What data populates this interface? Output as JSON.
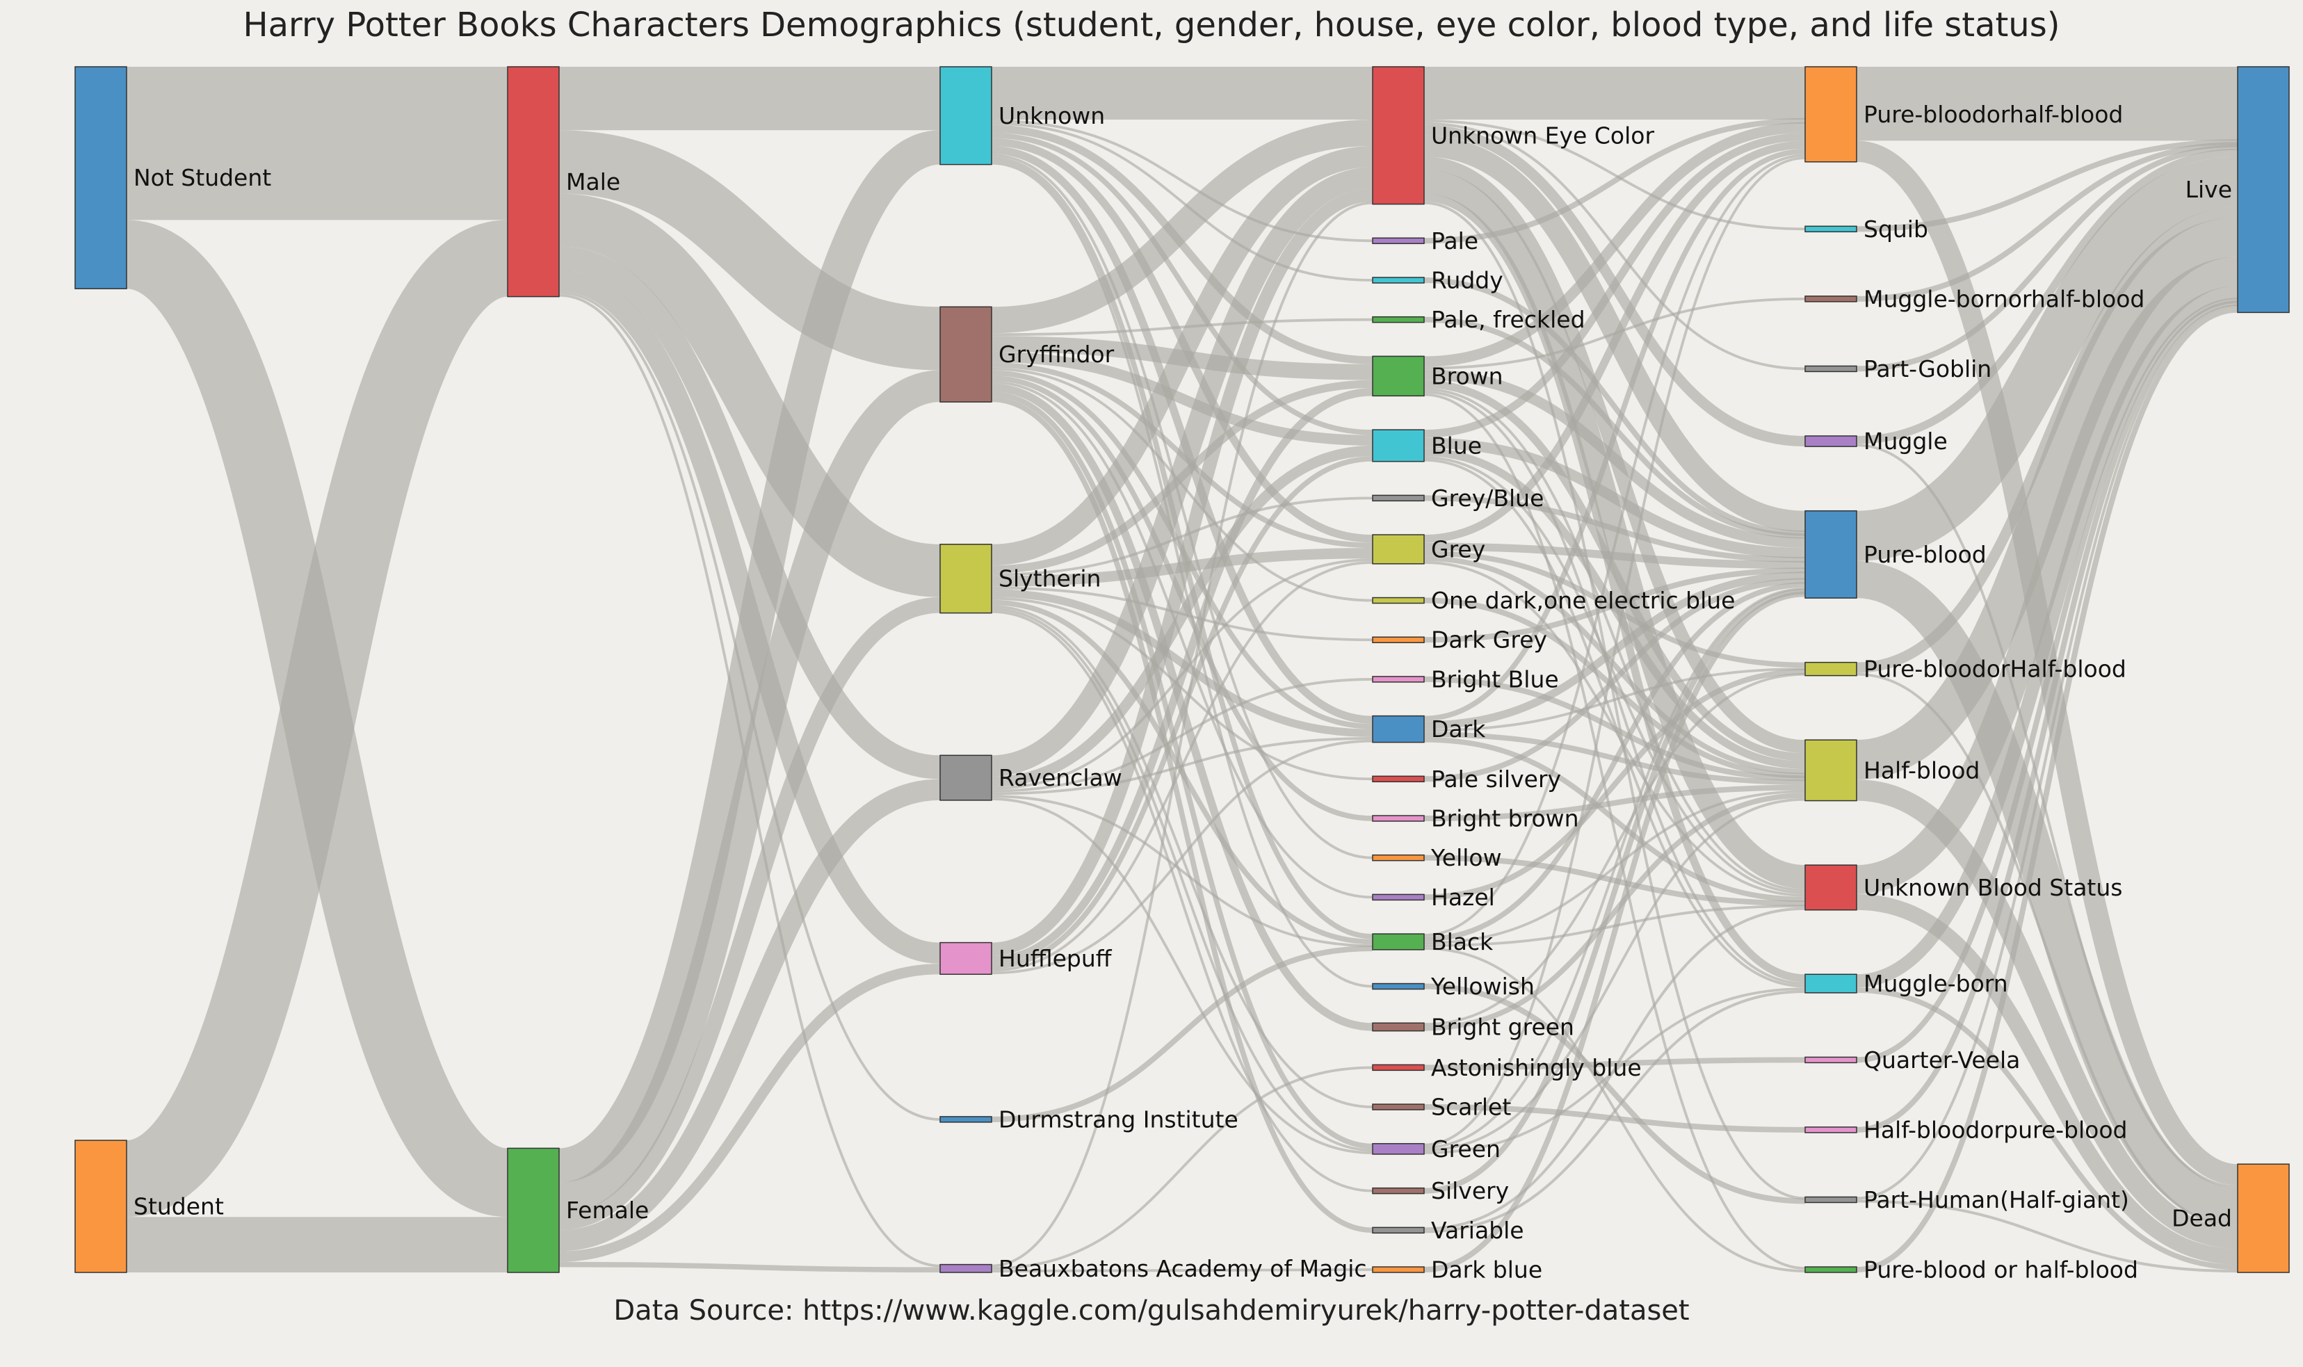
{
  "title": "Harry Potter Books Characters Demographics (student, gender, house, eye color, blood type, and life status)",
  "source": "Data Source: https://www.kaggle.com/gulsahdemiryurek/harry-potter-dataset",
  "chart_data": {
    "type": "sankey",
    "title": "Harry Potter Books Characters Demographics (student, gender, house, eye color, blood type, and life status)",
    "stages": [
      [
        {
          "id": "not_student",
          "label": "Not Student",
          "value": 84,
          "color": "#4a90c4"
        },
        {
          "id": "student",
          "label": "Student",
          "value": 50,
          "color": "#fa9640"
        }
      ],
      [
        {
          "id": "male",
          "label": "Male",
          "value": 87,
          "color": "#dc4f50"
        },
        {
          "id": "female",
          "label": "Female",
          "value": 47,
          "color": "#54b050"
        }
      ],
      [
        {
          "id": "h_unknown",
          "label": "Unknown",
          "value": 37,
          "color": "#42c5d3"
        },
        {
          "id": "gryffindor",
          "label": "Gryffindor",
          "value": 36,
          "color": "#a0716a"
        },
        {
          "id": "slytherin",
          "label": "Slytherin",
          "value": 26,
          "color": "#c6c84c"
        },
        {
          "id": "ravenclaw",
          "label": "Ravenclaw",
          "value": 17,
          "color": "#949494"
        },
        {
          "id": "hufflepuff",
          "label": "Hufflepuff",
          "value": 12,
          "color": "#e593cb"
        },
        {
          "id": "durmstrang",
          "label": "Durmstrang Institute",
          "value": 1,
          "color": "#4a90c4"
        },
        {
          "id": "beauxbatons",
          "label": "Beauxbatons Academy of Magic",
          "value": 3,
          "color": "#a980c6"
        }
      ],
      [
        {
          "id": "e_unknown",
          "label": "Unknown Eye Color",
          "value": 52,
          "color": "#dc4f50"
        },
        {
          "id": "pale",
          "label": "Pale",
          "value": 1,
          "color": "#a980c6"
        },
        {
          "id": "ruddy",
          "label": "Ruddy",
          "value": 1,
          "color": "#42c5d3"
        },
        {
          "id": "pale_freckled",
          "label": "Pale, freckled",
          "value": 1,
          "color": "#54b050"
        },
        {
          "id": "brown",
          "label": "Brown",
          "value": 15,
          "color": "#54b050"
        },
        {
          "id": "blue",
          "label": "Blue",
          "value": 12,
          "color": "#42c5d3"
        },
        {
          "id": "grey_blue",
          "label": "Grey/Blue",
          "value": 1,
          "color": "#949494"
        },
        {
          "id": "grey",
          "label": "Grey",
          "value": 11,
          "color": "#c6c84c"
        },
        {
          "id": "one_dark",
          "label": "One dark,one electric blue",
          "value": 1,
          "color": "#c6c84c"
        },
        {
          "id": "dark_grey",
          "label": "Dark Grey",
          "value": 1,
          "color": "#fa9640"
        },
        {
          "id": "bright_blue",
          "label": "Bright Blue",
          "value": 1,
          "color": "#e593cb"
        },
        {
          "id": "dark",
          "label": "Dark",
          "value": 10,
          "color": "#4a90c4"
        },
        {
          "id": "pale_silvery",
          "label": "Pale silvery",
          "value": 1,
          "color": "#dc4f50"
        },
        {
          "id": "bright_brown",
          "label": "Bright brown",
          "value": 2,
          "color": "#e593cb"
        },
        {
          "id": "yellow",
          "label": "Yellow",
          "value": 1,
          "color": "#fa9640"
        },
        {
          "id": "hazel",
          "label": "Hazel",
          "value": 1,
          "color": "#a980c6"
        },
        {
          "id": "black",
          "label": "Black",
          "value": 6,
          "color": "#54b050"
        },
        {
          "id": "yellowish",
          "label": "Yellowish",
          "value": 1,
          "color": "#4a90c4"
        },
        {
          "id": "bright_green",
          "label": "Bright green",
          "value": 3,
          "color": "#a0716a"
        },
        {
          "id": "astonishingly_blue",
          "label": "Astonishingly blue",
          "value": 1,
          "color": "#dc4f50"
        },
        {
          "id": "scarlet",
          "label": "Scarlet",
          "value": 1,
          "color": "#a0716a"
        },
        {
          "id": "green",
          "label": "Green",
          "value": 4,
          "color": "#a980c6"
        },
        {
          "id": "silvery",
          "label": "Silvery",
          "value": 1,
          "color": "#a0716a"
        },
        {
          "id": "variable",
          "label": "Variable",
          "value": 2,
          "color": "#949494"
        },
        {
          "id": "dark_blue",
          "label": "Dark blue",
          "value": 1,
          "color": "#fa9640"
        }
      ],
      [
        {
          "id": "pure_or_half",
          "label": "Pure-bloodorhalf-blood",
          "value": 36,
          "color": "#fa9640"
        },
        {
          "id": "squib",
          "label": "Squib",
          "value": 1,
          "color": "#42c5d3"
        },
        {
          "id": "muggleborn_or_half",
          "label": "Muggle-bornorhalf-blood",
          "value": 1,
          "color": "#a0716a"
        },
        {
          "id": "part_goblin",
          "label": "Part-Goblin",
          "value": 1,
          "color": "#949494"
        },
        {
          "id": "muggle",
          "label": "Muggle",
          "value": 4,
          "color": "#a980c6"
        },
        {
          "id": "pure_blood",
          "label": "Pure-blood",
          "value": 33,
          "color": "#4a90c4"
        },
        {
          "id": "pure_or_half_cap",
          "label": "Pure-bloodorHalf-blood",
          "value": 5,
          "color": "#c6c84c"
        },
        {
          "id": "half_blood",
          "label": "Half-blood",
          "value": 23,
          "color": "#c6c84c"
        },
        {
          "id": "b_unknown",
          "label": "Unknown Blood Status",
          "value": 17,
          "color": "#dc4f50"
        },
        {
          "id": "muggle_born",
          "label": "Muggle-born",
          "value": 7,
          "color": "#42c5d3"
        },
        {
          "id": "quarter_veela",
          "label": "Quarter-Veela",
          "value": 1,
          "color": "#e593cb"
        },
        {
          "id": "half_or_pure",
          "label": "Half-bloodorpure-blood",
          "value": 1,
          "color": "#e593cb"
        },
        {
          "id": "part_human",
          "label": "Part-Human(Half-giant)",
          "value": 2,
          "color": "#949494"
        },
        {
          "id": "pure_or_half_spaced",
          "label": "Pure-blood or half-blood",
          "value": 2,
          "color": "#54b050"
        }
      ],
      [
        {
          "id": "live",
          "label": "Live",
          "value": 93,
          "color": "#4a90c4"
        },
        {
          "id": "dead",
          "label": "Dead",
          "value": 41,
          "color": "#fa9640"
        }
      ]
    ],
    "links": [
      [
        "not_student",
        "male",
        58
      ],
      [
        "not_student",
        "female",
        26
      ],
      [
        "student",
        "male",
        29
      ],
      [
        "student",
        "female",
        21
      ],
      [
        "male",
        "h_unknown",
        24
      ],
      [
        "male",
        "gryffindor",
        24
      ],
      [
        "male",
        "slytherin",
        20
      ],
      [
        "male",
        "ravenclaw",
        9
      ],
      [
        "male",
        "hufflepuff",
        8
      ],
      [
        "male",
        "durmstrang",
        1
      ],
      [
        "male",
        "beauxbatons",
        1
      ],
      [
        "female",
        "h_unknown",
        13
      ],
      [
        "female",
        "gryffindor",
        12
      ],
      [
        "female",
        "slytherin",
        6
      ],
      [
        "female",
        "ravenclaw",
        8
      ],
      [
        "female",
        "hufflepuff",
        4
      ],
      [
        "female",
        "beauxbatons",
        2
      ],
      [
        "h_unknown",
        "e_unknown",
        20
      ],
      [
        "h_unknown",
        "pale",
        1
      ],
      [
        "h_unknown",
        "ruddy",
        1
      ],
      [
        "h_unknown",
        "brown",
        3
      ],
      [
        "h_unknown",
        "blue",
        2
      ],
      [
        "h_unknown",
        "grey",
        3
      ],
      [
        "h_unknown",
        "dark",
        3
      ],
      [
        "h_unknown",
        "yellow",
        1
      ],
      [
        "h_unknown",
        "black",
        2
      ],
      [
        "h_unknown",
        "yellowish",
        1
      ],
      [
        "gryffindor",
        "e_unknown",
        10
      ],
      [
        "gryffindor",
        "pale_freckled",
        1
      ],
      [
        "gryffindor",
        "brown",
        6
      ],
      [
        "gryffindor",
        "blue",
        4
      ],
      [
        "gryffindor",
        "grey",
        2
      ],
      [
        "gryffindor",
        "one_dark",
        1
      ],
      [
        "gryffindor",
        "dark",
        2
      ],
      [
        "gryffindor",
        "bright_brown",
        2
      ],
      [
        "gryffindor",
        "hazel",
        1
      ],
      [
        "gryffindor",
        "bright_green",
        3
      ],
      [
        "gryffindor",
        "green",
        2
      ],
      [
        "gryffindor",
        "variable",
        2
      ],
      [
        "slytherin",
        "e_unknown",
        8
      ],
      [
        "slytherin",
        "brown",
        3
      ],
      [
        "slytherin",
        "grey_blue",
        1
      ],
      [
        "slytherin",
        "grey",
        4
      ],
      [
        "slytherin",
        "dark_grey",
        1
      ],
      [
        "slytherin",
        "dark",
        3
      ],
      [
        "slytherin",
        "pale_silvery",
        1
      ],
      [
        "slytherin",
        "black",
        2
      ],
      [
        "slytherin",
        "scarlet",
        1
      ],
      [
        "slytherin",
        "silvery",
        1
      ],
      [
        "slytherin",
        "green",
        1
      ],
      [
        "ravenclaw",
        "e_unknown",
        8
      ],
      [
        "ravenclaw",
        "blue",
        4
      ],
      [
        "ravenclaw",
        "grey",
        1
      ],
      [
        "ravenclaw",
        "bright_blue",
        1
      ],
      [
        "ravenclaw",
        "dark",
        1
      ],
      [
        "ravenclaw",
        "black",
        1
      ],
      [
        "ravenclaw",
        "green",
        1
      ],
      [
        "hufflepuff",
        "e_unknown",
        5
      ],
      [
        "hufflepuff",
        "brown",
        3
      ],
      [
        "hufflepuff",
        "blue",
        2
      ],
      [
        "hufflepuff",
        "grey",
        1
      ],
      [
        "hufflepuff",
        "dark",
        1
      ],
      [
        "durmstrang",
        "black",
        1
      ],
      [
        "beauxbatons",
        "e_unknown",
        1
      ],
      [
        "beauxbatons",
        "astonishingly_blue",
        1
      ],
      [
        "beauxbatons",
        "dark_blue",
        1
      ],
      [
        "e_unknown",
        "pure_or_half",
        20
      ],
      [
        "e_unknown",
        "squib",
        1
      ],
      [
        "e_unknown",
        "part_goblin",
        1
      ],
      [
        "e_unknown",
        "muggle",
        4
      ],
      [
        "e_unknown",
        "pure_blood",
        8
      ],
      [
        "e_unknown",
        "half_blood",
        5
      ],
      [
        "e_unknown",
        "b_unknown",
        9
      ],
      [
        "e_unknown",
        "muggle_born",
        3
      ],
      [
        "e_unknown",
        "part_human",
        1
      ],
      [
        "pale",
        "pure_or_half",
        1
      ],
      [
        "ruddy",
        "pure_blood",
        1
      ],
      [
        "pale_freckled",
        "pure_blood",
        1
      ],
      [
        "brown",
        "pure_or_half",
        4
      ],
      [
        "brown",
        "muggleborn_or_half",
        1
      ],
      [
        "brown",
        "pure_blood",
        4
      ],
      [
        "brown",
        "half_blood",
        3
      ],
      [
        "brown",
        "b_unknown",
        1
      ],
      [
        "brown",
        "muggle_born",
        1
      ],
      [
        "brown",
        "pure_or_half_spaced",
        1
      ],
      [
        "blue",
        "pure_or_half",
        3
      ],
      [
        "blue",
        "pure_blood",
        4
      ],
      [
        "blue",
        "half_blood",
        3
      ],
      [
        "blue",
        "b_unknown",
        1
      ],
      [
        "blue",
        "muggle_born",
        1
      ],
      [
        "grey_blue",
        "pure_blood",
        1
      ],
      [
        "grey",
        "pure_or_half",
        3
      ],
      [
        "grey",
        "pure_blood",
        3
      ],
      [
        "grey",
        "pure_or_half_cap",
        2
      ],
      [
        "grey",
        "half_blood",
        2
      ],
      [
        "grey",
        "b_unknown",
        1
      ],
      [
        "one_dark",
        "half_blood",
        1
      ],
      [
        "dark_grey",
        "pure_blood",
        1
      ],
      [
        "bright_blue",
        "half_blood",
        1
      ],
      [
        "dark",
        "pure_or_half",
        2
      ],
      [
        "dark",
        "pure_blood",
        3
      ],
      [
        "dark",
        "pure_or_half_cap",
        1
      ],
      [
        "dark",
        "half_blood",
        2
      ],
      [
        "dark",
        "b_unknown",
        2
      ],
      [
        "pale_silvery",
        "pure_blood",
        1
      ],
      [
        "bright_brown",
        "half_blood",
        2
      ],
      [
        "yellow",
        "b_unknown",
        1
      ],
      [
        "hazel",
        "pure_or_half_cap",
        1
      ],
      [
        "black",
        "pure_or_half",
        1
      ],
      [
        "black",
        "pure_blood",
        2
      ],
      [
        "black",
        "half_blood",
        1
      ],
      [
        "black",
        "b_unknown",
        1
      ],
      [
        "black",
        "pure_or_half_spaced",
        1
      ],
      [
        "yellowish",
        "part_human",
        1
      ],
      [
        "bright_green",
        "half_blood",
        2
      ],
      [
        "bright_green",
        "pure_or_half_cap",
        1
      ],
      [
        "astonishingly_blue",
        "quarter_veela",
        1
      ],
      [
        "scarlet",
        "half_or_pure",
        1
      ],
      [
        "green",
        "pure_or_half",
        1
      ],
      [
        "green",
        "pure_blood",
        1
      ],
      [
        "green",
        "half_blood",
        1
      ],
      [
        "green",
        "muggle_born",
        1
      ],
      [
        "silvery",
        "pure_blood",
        1
      ],
      [
        "variable",
        "b_unknown",
        1
      ],
      [
        "variable",
        "muggle_born",
        1
      ],
      [
        "dark_blue",
        "pure_blood",
        1
      ],
      [
        "pure_or_half",
        "live",
        28
      ],
      [
        "pure_or_half",
        "dead",
        8
      ],
      [
        "squib",
        "live",
        1
      ],
      [
        "muggleborn_or_half",
        "live",
        1
      ],
      [
        "part_goblin",
        "live",
        1
      ],
      [
        "muggle",
        "live",
        3
      ],
      [
        "muggle",
        "dead",
        1
      ],
      [
        "pure_blood",
        "live",
        19
      ],
      [
        "pure_blood",
        "dead",
        14
      ],
      [
        "pure_or_half_cap",
        "live",
        4
      ],
      [
        "pure_or_half_cap",
        "dead",
        1
      ],
      [
        "half_blood",
        "live",
        15
      ],
      [
        "half_blood",
        "dead",
        8
      ],
      [
        "b_unknown",
        "live",
        11
      ],
      [
        "b_unknown",
        "dead",
        6
      ],
      [
        "muggle_born",
        "live",
        5
      ],
      [
        "muggle_born",
        "dead",
        2
      ],
      [
        "quarter_veela",
        "live",
        1
      ],
      [
        "half_or_pure",
        "live",
        1
      ],
      [
        "part_human",
        "live",
        1
      ],
      [
        "part_human",
        "dead",
        1
      ],
      [
        "pure_or_half_spaced",
        "live",
        2
      ]
    ]
  }
}
